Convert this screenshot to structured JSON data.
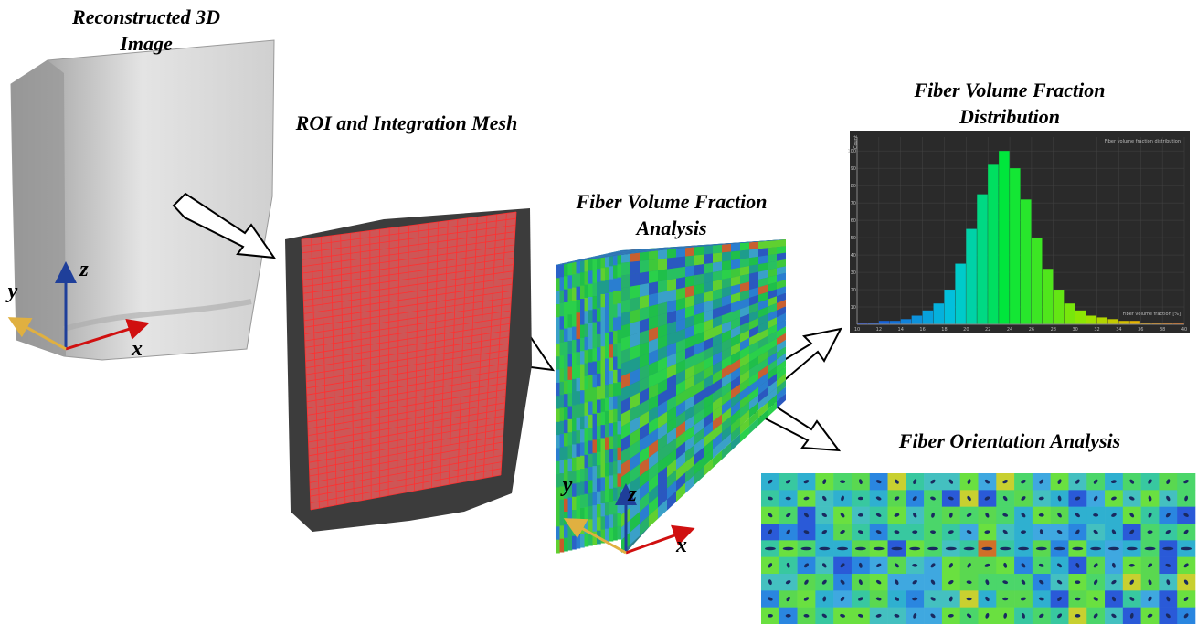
{
  "panels": {
    "reconstructed": {
      "title": [
        "Reconstructed 3D",
        "Image"
      ],
      "axes": [
        "y",
        "z",
        "x"
      ]
    },
    "roi": {
      "title": "ROI and Integration Mesh"
    },
    "fvf": {
      "title": [
        "Fiber Volume Fraction",
        "Analysis"
      ],
      "axes": [
        "y",
        "z",
        "x"
      ]
    },
    "distribution": {
      "title": [
        "Fiber Volume Fraction",
        "Distribution"
      ]
    },
    "orientation": {
      "title": "Fiber Orientation Analysis"
    }
  },
  "histogram": {
    "type": "histogram",
    "title": "Fiber volume fraction distribution",
    "y_label": "Count",
    "x_label": "Fiber volume fraction [%]",
    "bins": [
      10,
      11,
      12,
      13,
      14,
      15,
      16,
      17,
      18,
      19,
      20,
      21,
      22,
      23,
      24,
      25,
      26,
      27,
      28,
      29,
      30,
      31,
      32,
      33,
      34,
      35,
      36,
      37,
      38,
      39,
      40
    ],
    "counts": [
      1,
      1,
      2,
      2,
      3,
      5,
      8,
      12,
      20,
      35,
      55,
      75,
      92,
      100,
      90,
      72,
      50,
      32,
      20,
      12,
      8,
      5,
      4,
      3,
      2,
      2,
      1,
      1,
      1,
      1
    ],
    "xlim": [
      10,
      40
    ],
    "xticks": [
      10,
      12,
      14,
      16,
      18,
      20,
      22,
      24,
      26,
      28,
      30,
      32,
      34,
      36,
      38,
      40
    ],
    "ylim": [
      0,
      108
    ],
    "yticks": [
      10,
      20,
      30,
      40,
      50,
      60,
      70,
      80,
      90,
      100
    ]
  }
}
